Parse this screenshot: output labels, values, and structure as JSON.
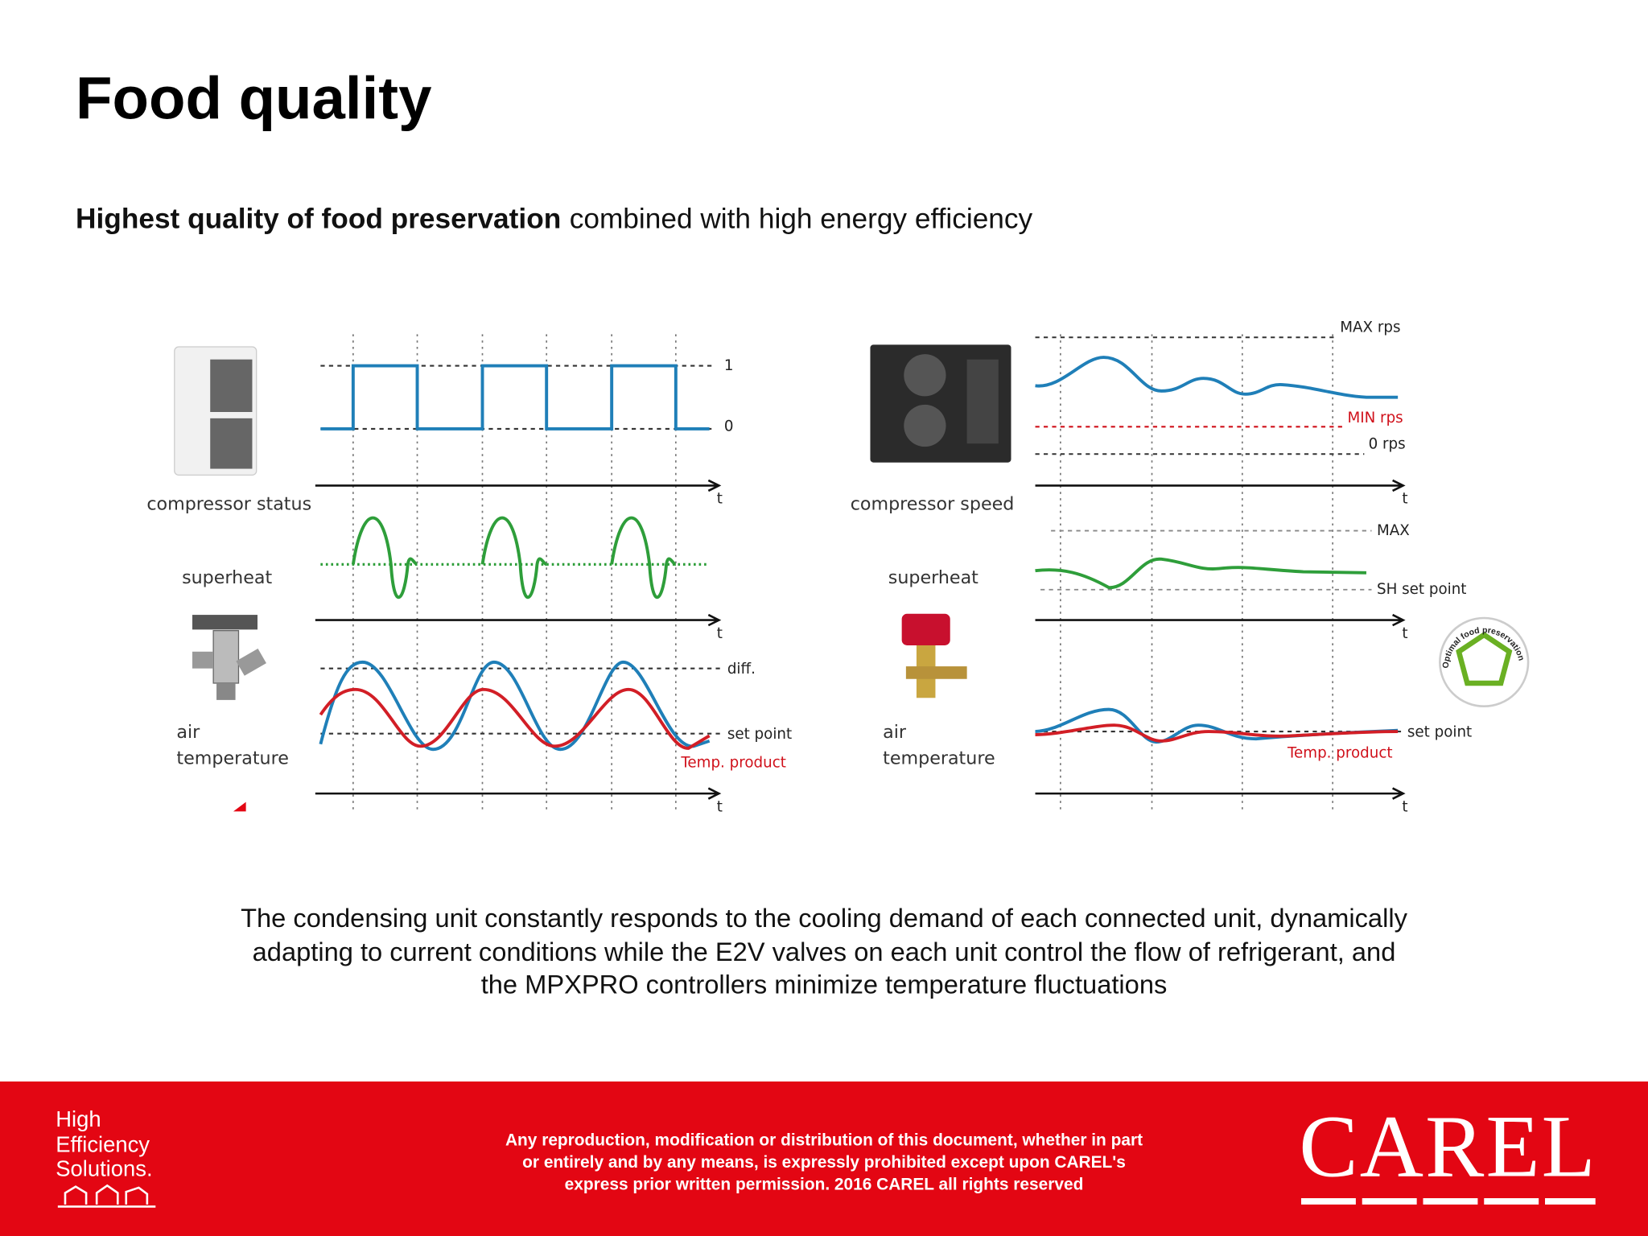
{
  "header": {
    "title": "Food quality",
    "subtitle": {
      "bold": "Highest quality of food preservation",
      "rest": "combined with high energy efficiency"
    }
  },
  "left": {
    "status_label": "compressor status",
    "superheat_label": "superheat",
    "air_label": [
      "air",
      "temperature"
    ],
    "level_high": "1",
    "level_low": "0",
    "time_axis": [
      "t",
      "t",
      "t"
    ],
    "diff": "diff.",
    "set_point": "set point",
    "product": "Temp. product"
  },
  "right": {
    "speed_label": "compressor speed",
    "superheat_label": "superheat",
    "air_label": [
      "air",
      "temperature"
    ],
    "max_rps": "MAX rps",
    "min_rps": "MIN rps",
    "zero_rps": "0 rps",
    "time_axis": [
      "t",
      "t",
      "t"
    ],
    "max": "MAX",
    "sh_set_point": "SH set point",
    "set_point": "set point",
    "product": "Temp. product",
    "badge": "Optimal food preservation"
  },
  "caption": [
    "The condensing unit constantly responds to the cooling demand of each connected unit, dynamically",
    "adapting to current conditions while the E2V valves on each unit control the flow of refrigerant, and",
    "the MPXPRO controllers minimize temperature fluctuations"
  ],
  "footer": {
    "brand": [
      "High",
      "Efficiency",
      "Solutions."
    ],
    "notice": [
      "Any reproduction, modification or distribution of this document, whether in part",
      "or entirely and by any means, is expressly prohibited except upon CAREL's",
      "express prior written permission. 2016 CAREL all rights reserved"
    ],
    "logo": "CAREL"
  }
}
